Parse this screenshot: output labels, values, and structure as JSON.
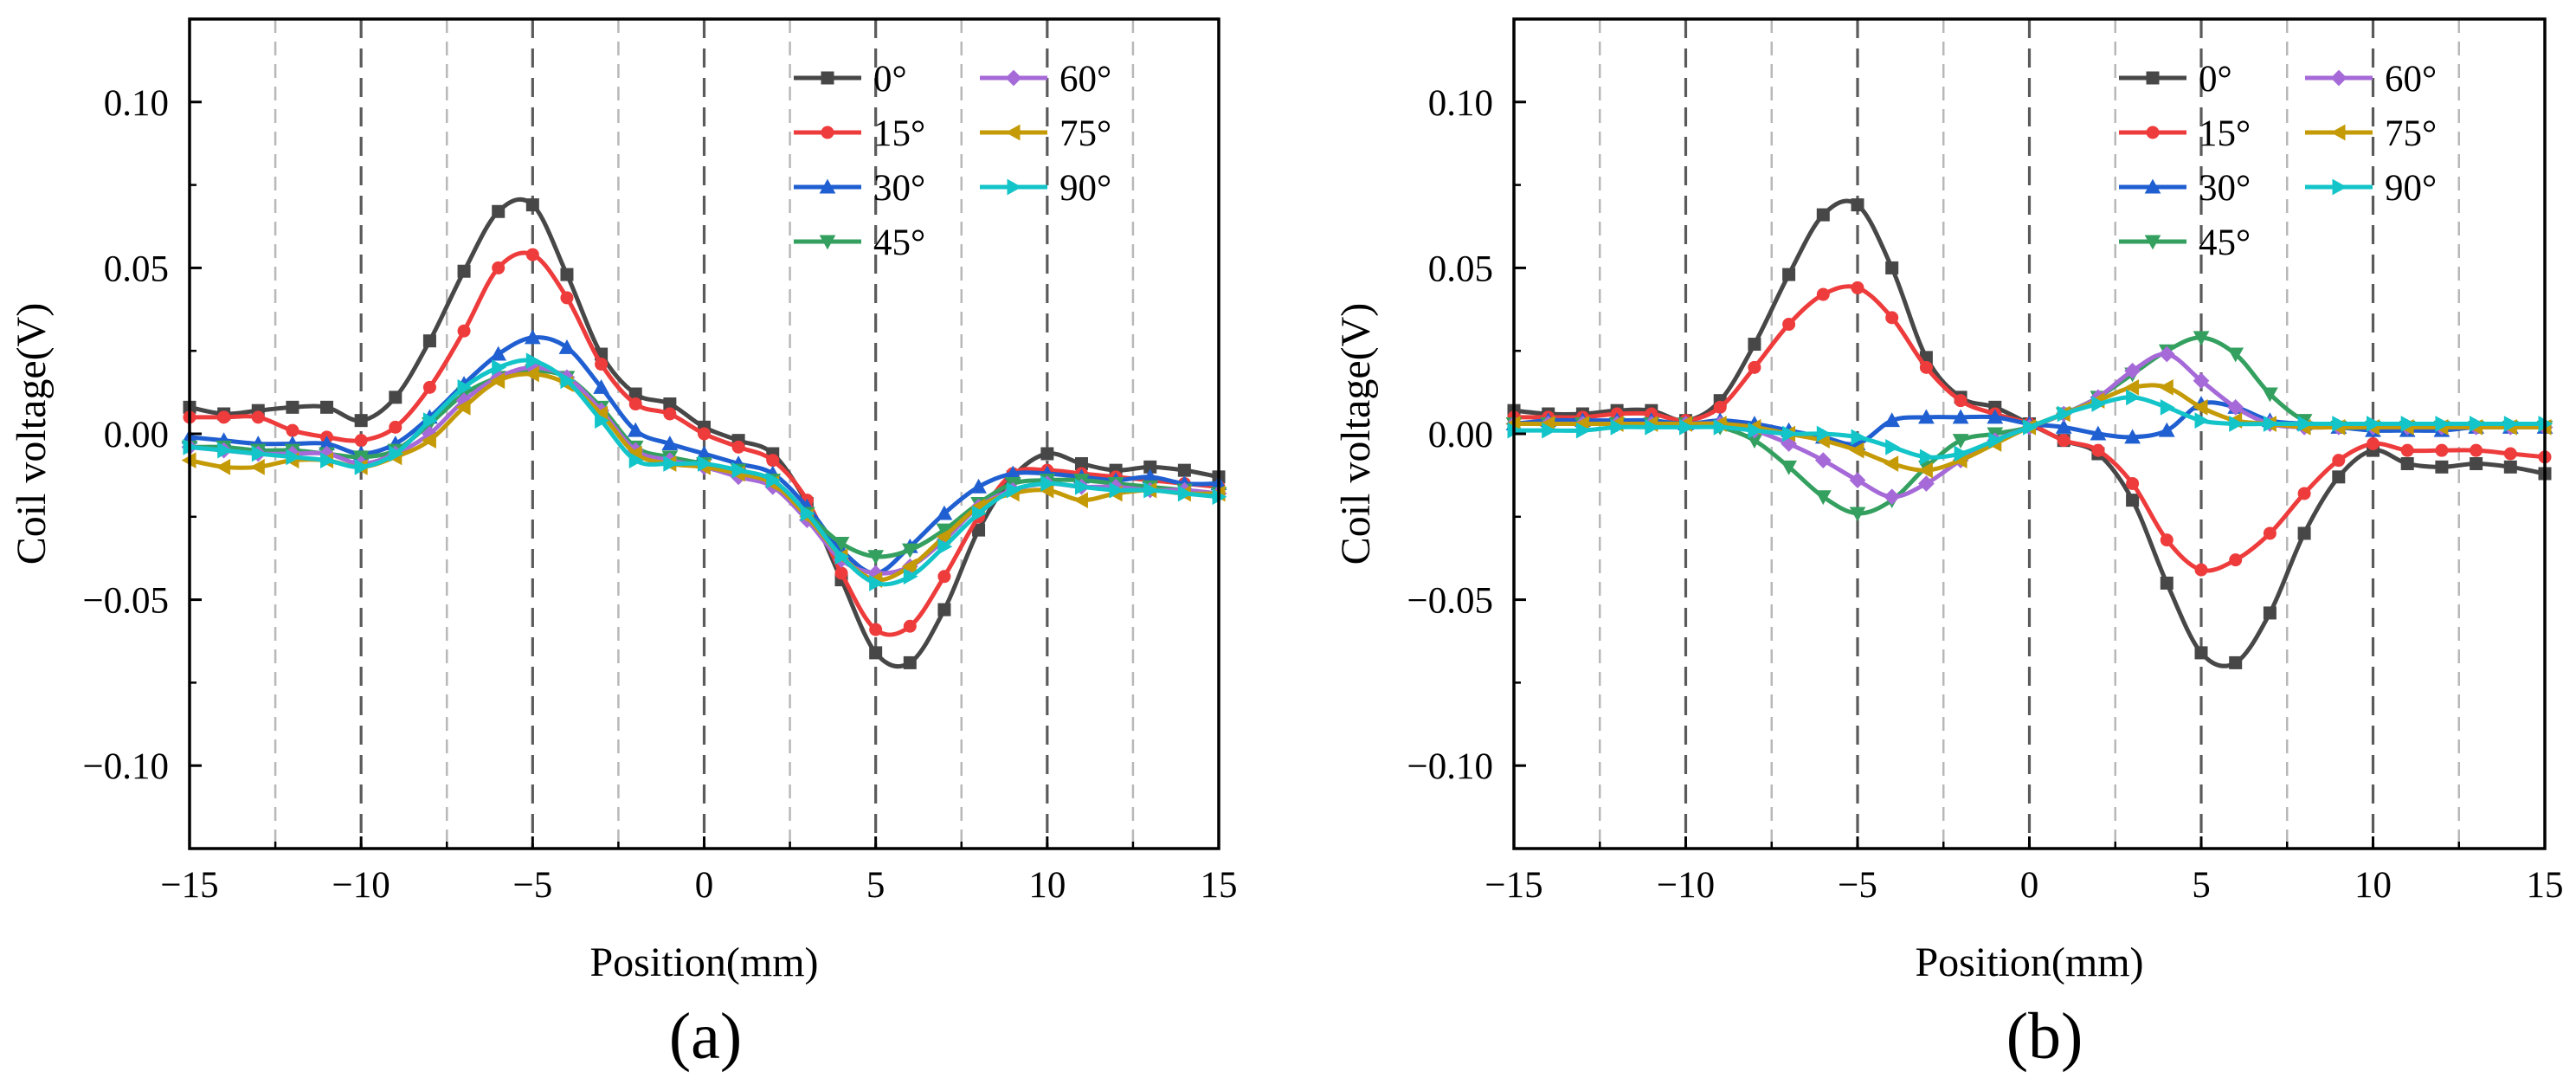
{
  "figure": {
    "panels": [
      {
        "caption": "(a)"
      },
      {
        "caption": "(b)"
      }
    ]
  },
  "chart_data": [
    {
      "type": "line",
      "panel": "(a)",
      "xlabel": "Position(mm)",
      "ylabel": "Coil voltage(V)",
      "xlim": [
        -15,
        15
      ],
      "ylim": [
        -0.125,
        0.125
      ],
      "xticks": [
        "−15",
        "−10",
        "−5",
        "0",
        "5",
        "10",
        "15"
      ],
      "xtick_values": [
        -15,
        -10,
        -5,
        0,
        5,
        10,
        15
      ],
      "yticks": [
        "−0.10",
        "−0.05",
        "0.00",
        "0.05",
        "0.10"
      ],
      "ytick_values": [
        -0.1,
        -0.05,
        0,
        0.05,
        0.1
      ],
      "major_vlines": [
        -10,
        -5,
        0,
        5,
        10
      ],
      "minor_vlines": [
        -12.5,
        -7.5,
        -2.5,
        2.5,
        7.5,
        12.5
      ],
      "legend_position": "top-right",
      "x": [
        -15,
        -14,
        -13,
        -12,
        -11,
        -10,
        -9,
        -8,
        -7,
        -6,
        -5,
        -4,
        -3,
        -2,
        -1,
        0,
        1,
        2,
        3,
        4,
        5,
        6,
        7,
        8,
        9,
        10,
        11,
        12,
        13,
        14,
        15
      ],
      "series": [
        {
          "name": "0°",
          "color": "#474747",
          "marker": "square",
          "values": [
            0.008,
            0.006,
            0.007,
            0.008,
            0.008,
            0.004,
            0.011,
            0.028,
            0.049,
            0.067,
            0.069,
            0.048,
            0.024,
            0.012,
            0.009,
            0.002,
            -0.002,
            -0.006,
            -0.021,
            -0.044,
            -0.066,
            -0.069,
            -0.053,
            -0.029,
            -0.013,
            -0.006,
            -0.009,
            -0.011,
            -0.01,
            -0.011,
            -0.013
          ]
        },
        {
          "name": "15°",
          "color": "#ee3b3b",
          "marker": "circle",
          "values": [
            0.005,
            0.005,
            0.005,
            0.001,
            -0.001,
            -0.002,
            0.002,
            0.014,
            0.031,
            0.05,
            0.054,
            0.041,
            0.021,
            0.009,
            0.006,
            0.0,
            -0.004,
            -0.008,
            -0.02,
            -0.042,
            -0.059,
            -0.058,
            -0.043,
            -0.025,
            -0.012,
            -0.011,
            -0.012,
            -0.013,
            -0.014,
            -0.015,
            -0.016
          ]
        },
        {
          "name": "30°",
          "color": "#1f5fd1",
          "marker": "triangle-up",
          "values": [
            -0.001,
            -0.002,
            -0.003,
            -0.003,
            -0.003,
            -0.006,
            -0.003,
            0.005,
            0.015,
            0.024,
            0.029,
            0.026,
            0.014,
            0.001,
            -0.003,
            -0.006,
            -0.009,
            -0.012,
            -0.022,
            -0.035,
            -0.042,
            -0.034,
            -0.024,
            -0.016,
            -0.012,
            -0.012,
            -0.013,
            -0.014,
            -0.013,
            -0.015,
            -0.015
          ]
        },
        {
          "name": "45°",
          "color": "#34a05f",
          "marker": "triangle-down",
          "values": [
            -0.004,
            -0.004,
            -0.005,
            -0.005,
            -0.006,
            -0.007,
            -0.005,
            0.003,
            0.012,
            0.017,
            0.019,
            0.017,
            0.008,
            -0.004,
            -0.007,
            -0.009,
            -0.011,
            -0.014,
            -0.024,
            -0.033,
            -0.037,
            -0.035,
            -0.029,
            -0.021,
            -0.015,
            -0.014,
            -0.014,
            -0.015,
            -0.016,
            -0.017,
            -0.018
          ]
        },
        {
          "name": "60°",
          "color": "#a56ad8",
          "marker": "diamond",
          "values": [
            -0.004,
            -0.005,
            -0.006,
            -0.006,
            -0.006,
            -0.009,
            -0.006,
            0.0,
            0.01,
            0.017,
            0.02,
            0.017,
            0.007,
            -0.005,
            -0.008,
            -0.01,
            -0.013,
            -0.016,
            -0.026,
            -0.038,
            -0.042,
            -0.04,
            -0.032,
            -0.022,
            -0.017,
            -0.015,
            -0.016,
            -0.016,
            -0.017,
            -0.017,
            -0.018
          ]
        },
        {
          "name": "75°",
          "color": "#c49a06",
          "marker": "triangle-left",
          "values": [
            -0.008,
            -0.01,
            -0.01,
            -0.008,
            -0.008,
            -0.01,
            -0.007,
            -0.002,
            0.008,
            0.016,
            0.018,
            0.015,
            0.006,
            -0.006,
            -0.009,
            -0.01,
            -0.012,
            -0.015,
            -0.025,
            -0.037,
            -0.044,
            -0.04,
            -0.031,
            -0.022,
            -0.018,
            -0.017,
            -0.02,
            -0.018,
            -0.017,
            -0.018,
            -0.018
          ]
        },
        {
          "name": "90°",
          "color": "#13c4c9",
          "marker": "triangle-right",
          "values": [
            -0.004,
            -0.005,
            -0.006,
            -0.007,
            -0.008,
            -0.01,
            -0.006,
            0.004,
            0.014,
            0.02,
            0.022,
            0.016,
            0.004,
            -0.008,
            -0.009,
            -0.009,
            -0.011,
            -0.014,
            -0.024,
            -0.037,
            -0.045,
            -0.043,
            -0.034,
            -0.024,
            -0.017,
            -0.015,
            -0.016,
            -0.017,
            -0.017,
            -0.018,
            -0.019
          ]
        }
      ]
    },
    {
      "type": "line",
      "panel": "(b)",
      "xlabel": "Position(mm)",
      "ylabel": "Coil voltage(V)",
      "xlim": [
        -15,
        15
      ],
      "ylim": [
        -0.125,
        0.125
      ],
      "xticks": [
        "−15",
        "−10",
        "−5",
        "0",
        "5",
        "10",
        "15"
      ],
      "xtick_values": [
        -15,
        -10,
        -5,
        0,
        5,
        10,
        15
      ],
      "yticks": [
        "−0.10",
        "−0.05",
        "0.00",
        "0.05",
        "0.10"
      ],
      "ytick_values": [
        -0.1,
        -0.05,
        0,
        0.05,
        0.1
      ],
      "major_vlines": [
        -10,
        -5,
        0,
        5,
        10
      ],
      "minor_vlines": [
        -12.5,
        -7.5,
        -2.5,
        2.5,
        7.5,
        12.5
      ],
      "legend_position": "top-right",
      "x": [
        -15,
        -14,
        -13,
        -12,
        -11,
        -10,
        -9,
        -8,
        -7,
        -6,
        -5,
        -4,
        -3,
        -2,
        -1,
        0,
        1,
        2,
        3,
        4,
        5,
        6,
        7,
        8,
        9,
        10,
        11,
        12,
        13,
        14,
        15
      ],
      "series": [
        {
          "name": "0°",
          "color": "#474747",
          "marker": "square",
          "values": [
            0.007,
            0.006,
            0.006,
            0.007,
            0.007,
            0.004,
            0.01,
            0.027,
            0.048,
            0.066,
            0.069,
            0.05,
            0.023,
            0.011,
            0.008,
            0.003,
            -0.002,
            -0.006,
            -0.02,
            -0.045,
            -0.066,
            -0.069,
            -0.054,
            -0.03,
            -0.013,
            -0.005,
            -0.009,
            -0.01,
            -0.009,
            -0.01,
            -0.012
          ]
        },
        {
          "name": "15°",
          "color": "#ee3b3b",
          "marker": "circle",
          "values": [
            0.005,
            0.005,
            0.005,
            0.006,
            0.006,
            0.004,
            0.008,
            0.02,
            0.033,
            0.042,
            0.044,
            0.035,
            0.02,
            0.01,
            0.006,
            0.003,
            -0.002,
            -0.005,
            -0.015,
            -0.032,
            -0.041,
            -0.038,
            -0.03,
            -0.018,
            -0.008,
            -0.003,
            -0.005,
            -0.005,
            -0.005,
            -0.006,
            -0.007
          ]
        },
        {
          "name": "30°",
          "color": "#1f5fd1",
          "marker": "triangle-up",
          "values": [
            0.003,
            0.004,
            0.004,
            0.004,
            0.004,
            0.003,
            0.004,
            0.003,
            0.001,
            -0.001,
            -0.003,
            0.004,
            0.005,
            0.005,
            0.005,
            0.003,
            0.002,
            0.0,
            -0.001,
            0.001,
            0.009,
            0.008,
            0.004,
            0.003,
            0.002,
            0.001,
            0.001,
            0.001,
            0.002,
            0.002,
            0.002
          ]
        },
        {
          "name": "45°",
          "color": "#34a05f",
          "marker": "triangle-down",
          "values": [
            0.003,
            0.003,
            0.003,
            0.003,
            0.003,
            0.003,
            0.002,
            -0.002,
            -0.01,
            -0.019,
            -0.024,
            -0.02,
            -0.01,
            -0.002,
            0.0,
            0.002,
            0.006,
            0.011,
            0.018,
            0.025,
            0.029,
            0.024,
            0.012,
            0.004,
            0.002,
            0.002,
            0.002,
            0.002,
            0.002,
            0.002,
            0.002
          ]
        },
        {
          "name": "60°",
          "color": "#a56ad8",
          "marker": "diamond",
          "values": [
            0.003,
            0.003,
            0.003,
            0.003,
            0.003,
            0.003,
            0.003,
            0.001,
            -0.003,
            -0.008,
            -0.014,
            -0.019,
            -0.015,
            -0.008,
            -0.002,
            0.002,
            0.006,
            0.011,
            0.019,
            0.024,
            0.016,
            0.008,
            0.003,
            0.002,
            0.002,
            0.002,
            0.002,
            0.002,
            0.002,
            0.002,
            0.002
          ]
        },
        {
          "name": "75°",
          "color": "#c49a06",
          "marker": "triangle-left",
          "values": [
            0.003,
            0.003,
            0.003,
            0.003,
            0.003,
            0.003,
            0.003,
            0.002,
            0.0,
            -0.002,
            -0.005,
            -0.009,
            -0.011,
            -0.008,
            -0.003,
            0.002,
            0.006,
            0.01,
            0.014,
            0.014,
            0.008,
            0.004,
            0.003,
            0.002,
            0.002,
            0.002,
            0.002,
            0.002,
            0.002,
            0.002,
            0.002
          ]
        },
        {
          "name": "90°",
          "color": "#13c4c9",
          "marker": "triangle-right",
          "values": [
            0.001,
            0.001,
            0.001,
            0.002,
            0.002,
            0.002,
            0.002,
            0.001,
            0.0,
            0.0,
            -0.001,
            -0.004,
            -0.007,
            -0.006,
            -0.002,
            0.002,
            0.006,
            0.009,
            0.011,
            0.008,
            0.004,
            0.003,
            0.003,
            0.003,
            0.003,
            0.003,
            0.003,
            0.003,
            0.003,
            0.003,
            0.003
          ]
        }
      ]
    }
  ]
}
